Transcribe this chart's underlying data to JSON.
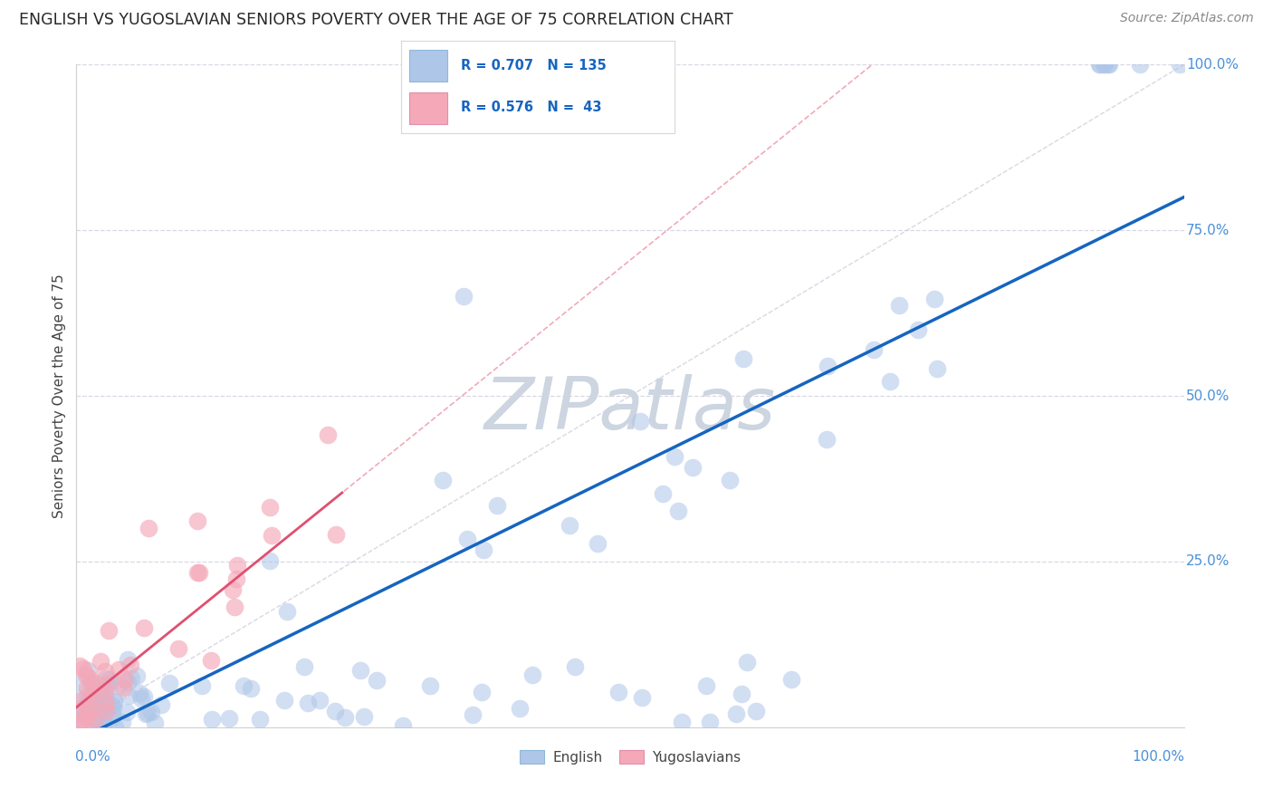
{
  "title": "ENGLISH VS YUGOSLAVIAN SENIORS POVERTY OVER THE AGE OF 75 CORRELATION CHART",
  "source": "Source: ZipAtlas.com",
  "ylabel": "Seniors Poverty Over the Age of 75",
  "english_R": 0.707,
  "english_N": 135,
  "yugoslav_R": 0.576,
  "yugoslav_N": 43,
  "english_color": "#aec6e8",
  "english_line_color": "#1565c0",
  "yugoslav_color": "#f4a8b8",
  "yugoslav_line_color": "#e05070",
  "yugoslav_dash_color": "#f0a0b0",
  "diagonal_color": "#c8c8d8",
  "watermark_color": "#ccd5e0",
  "title_color": "#282828",
  "axis_label_color": "#4a90d9",
  "legend_r_color": "#1565c0",
  "background_color": "#ffffff",
  "grid_color": "#d8d8e4",
  "spine_color": "#d0d0d0",
  "ylabel_color": "#444444"
}
